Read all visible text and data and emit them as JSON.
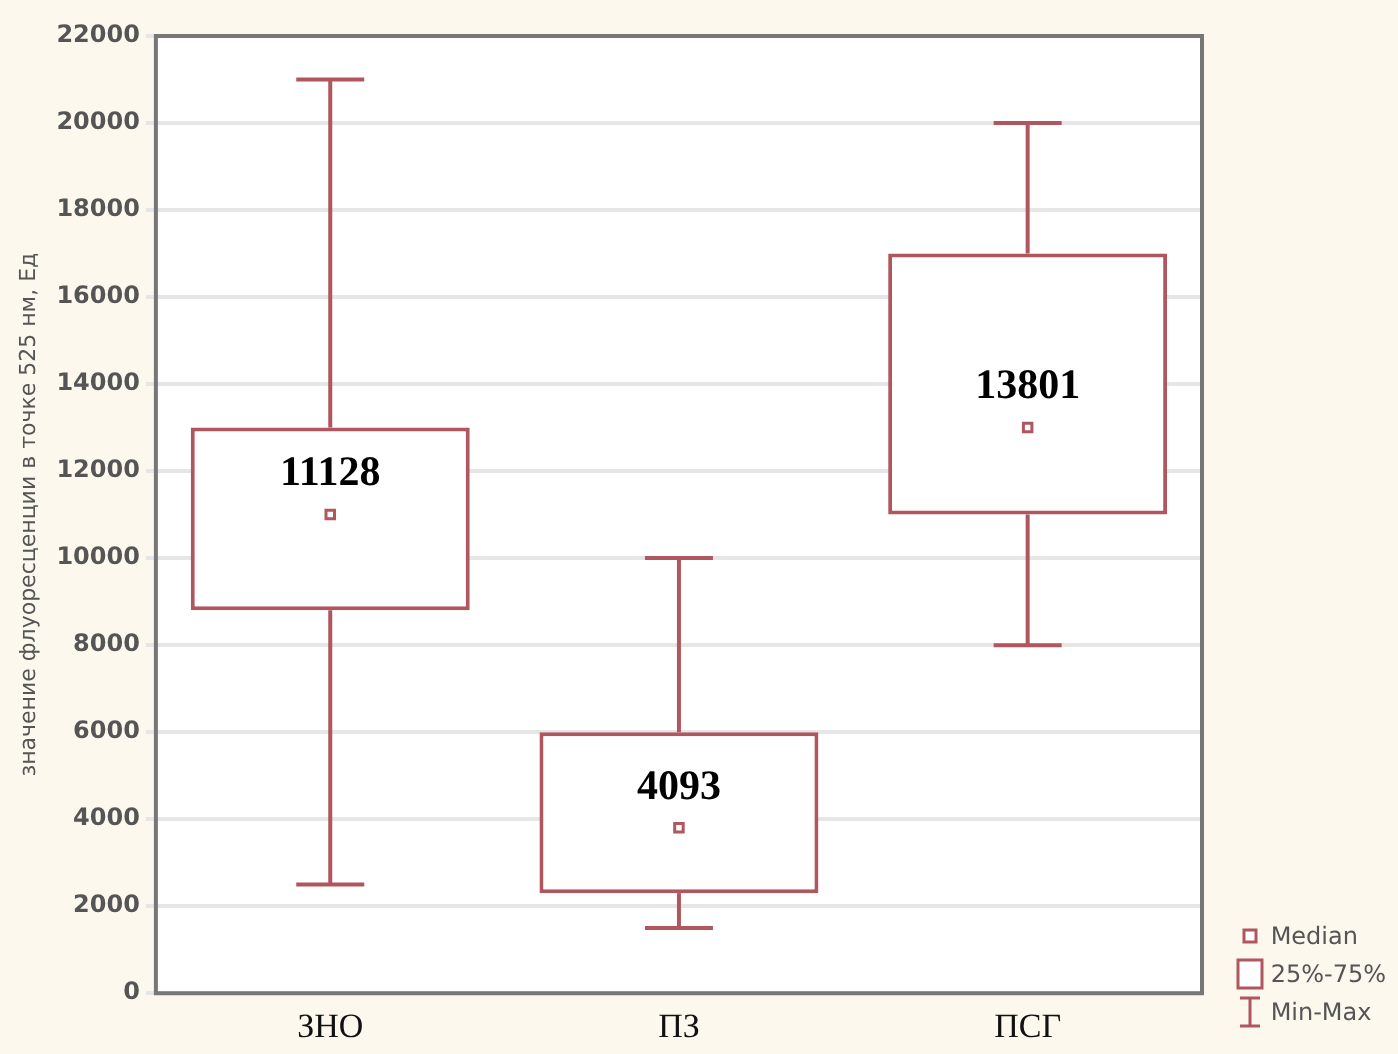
{
  "chart_data": {
    "type": "box",
    "ylabel": "значение флуоресценции в точке 525 нм, Ед",
    "categories": [
      "ЗНО",
      "ПЗ",
      "ПСГ"
    ],
    "series": [
      {
        "color": "#b0565e",
        "boxes": [
          {
            "low": 2500,
            "q1": 8800,
            "median": 11000,
            "q3": 13000,
            "high": 21000
          },
          {
            "low": 1500,
            "q1": 2300,
            "median": 3800,
            "q3": 6000,
            "high": 10000
          },
          {
            "low": 8000,
            "q1": 11000,
            "median": 13000,
            "q3": 17000,
            "high": 20000
          }
        ]
      }
    ],
    "ylim": [
      0,
      22000
    ],
    "yticks": [
      0,
      2000,
      4000,
      6000,
      8000,
      10000,
      12000,
      14000,
      16000,
      18000,
      20000,
      22000
    ],
    "grid": "y",
    "annotations": [
      "11128",
      "4093",
      "13801",
      "Median",
      "25%-75%",
      "Min-Max"
    ]
  }
}
